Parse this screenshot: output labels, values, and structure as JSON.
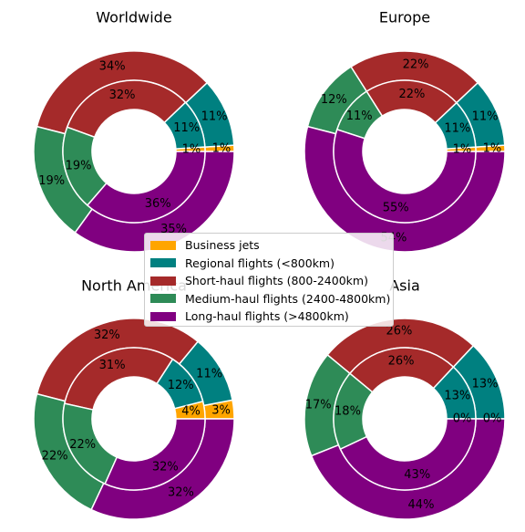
{
  "colors": {
    "business": "#FFA500",
    "regional": "#008080",
    "short": "#A52A2A",
    "medium": "#2E8B57",
    "long": "#800080"
  },
  "legend": [
    {
      "key": "business",
      "label": "Business jets"
    },
    {
      "key": "regional",
      "label": "Regional flights (<800km)"
    },
    {
      "key": "short",
      "label": "Short-haul flights (800-2400km)"
    },
    {
      "key": "medium",
      "label": "Medium-haul flights (2400-4800km)"
    },
    {
      "key": "long",
      "label": "Long-haul flights (>4800km)"
    }
  ],
  "chart_data": [
    {
      "type": "pie",
      "subtype": "nested-donut",
      "title": "Worldwide",
      "categories": [
        "Business jets",
        "Regional flights (<800km)",
        "Short-haul flights (800-2400km)",
        "Medium-haul flights (2400-4800km)",
        "Long-haul flights (>4800km)"
      ],
      "series": [
        {
          "ring": "outer",
          "values": [
            1,
            11,
            34,
            19,
            35
          ]
        },
        {
          "ring": "inner",
          "values": [
            1,
            11,
            32,
            19,
            36
          ]
        }
      ]
    },
    {
      "type": "pie",
      "subtype": "nested-donut",
      "title": "Europe",
      "categories": [
        "Business jets",
        "Regional flights (<800km)",
        "Short-haul flights (800-2400km)",
        "Medium-haul flights (2400-4800km)",
        "Long-haul flights (>4800km)"
      ],
      "series": [
        {
          "ring": "outer",
          "values": [
            1,
            11,
            22,
            12,
            54
          ]
        },
        {
          "ring": "inner",
          "values": [
            1,
            11,
            22,
            11,
            55
          ]
        }
      ]
    },
    {
      "type": "pie",
      "subtype": "nested-donut",
      "title": "North America",
      "categories": [
        "Business jets",
        "Regional flights (<800km)",
        "Short-haul flights (800-2400km)",
        "Medium-haul flights (2400-4800km)",
        "Long-haul flights (>4800km)"
      ],
      "series": [
        {
          "ring": "outer",
          "values": [
            3,
            11,
            32,
            22,
            32
          ]
        },
        {
          "ring": "inner",
          "values": [
            4,
            12,
            31,
            22,
            32
          ]
        }
      ]
    },
    {
      "type": "pie",
      "subtype": "nested-donut",
      "title": "Asia",
      "categories": [
        "Business jets",
        "Regional flights (<800km)",
        "Short-haul flights (800-2400km)",
        "Medium-haul flights (2400-4800km)",
        "Long-haul flights (>4800km)"
      ],
      "series": [
        {
          "ring": "outer",
          "values": [
            0,
            13,
            26,
            17,
            44
          ]
        },
        {
          "ring": "inner",
          "values": [
            0,
            13,
            26,
            18,
            43
          ]
        }
      ]
    }
  ]
}
